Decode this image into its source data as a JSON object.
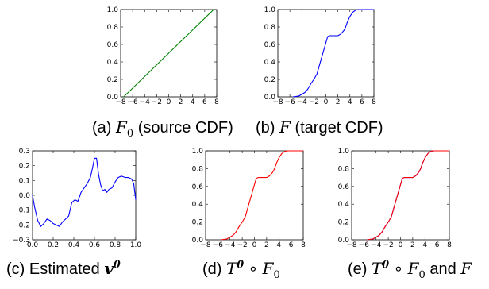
{
  "figure": {
    "captions": {
      "a": {
        "label": "(a) ",
        "sym": "F",
        "sub": "0",
        "text": " (source CDF)"
      },
      "b": {
        "label": "(b) ",
        "sym": "F",
        "text": " (target CDF)"
      },
      "c": {
        "label": "(c) Estimated ",
        "sym": "v",
        "sup": "θ"
      },
      "d": {
        "label": "(d) ",
        "sym": "T",
        "sup": "θ",
        "op": " ∘ ",
        "sym2": "F",
        "sub": "0"
      },
      "e": {
        "label": "(e) ",
        "sym": "T",
        "sup": "θ",
        "op": " ∘ ",
        "sym2": "F",
        "sub": "0",
        "tail": " and ",
        "sym3": "F"
      }
    }
  },
  "chart_data": [
    {
      "id": "a",
      "type": "line",
      "xlim": [
        -8,
        8
      ],
      "ylim": [
        0.0,
        1.0
      ],
      "xticks": [
        -8,
        -6,
        -4,
        -2,
        0,
        2,
        4,
        6,
        8
      ],
      "yticks": [
        "0.0",
        "0.2",
        "0.4",
        "0.6",
        "0.8",
        "1.0"
      ],
      "series": [
        {
          "color": "#008000",
          "x": [
            -7.5,
            7.5
          ],
          "y": [
            0.0,
            1.0
          ]
        }
      ]
    },
    {
      "id": "b",
      "type": "line",
      "xlim": [
        -8,
        8
      ],
      "ylim": [
        0.0,
        1.0
      ],
      "xticks": [
        -8,
        -6,
        -4,
        -2,
        0,
        2,
        4,
        6,
        8
      ],
      "yticks": [
        "0.0",
        "0.2",
        "0.4",
        "0.6",
        "0.8",
        "1.0"
      ],
      "series": [
        {
          "color": "#0000ff",
          "x": [
            -5.5,
            -4.5,
            -3.5,
            -3.0,
            -2.5,
            -2.0,
            -1.5,
            -1.0,
            -0.5,
            0.0,
            0.3,
            0.6,
            1.0,
            1.5,
            2.0,
            2.5,
            3.0,
            3.3,
            3.6,
            4.0,
            4.5,
            5.0,
            5.5,
            6.0,
            7.0,
            8.0
          ],
          "y": [
            0.0,
            0.01,
            0.05,
            0.09,
            0.15,
            0.2,
            0.26,
            0.38,
            0.5,
            0.62,
            0.69,
            0.7,
            0.7,
            0.7,
            0.7,
            0.72,
            0.76,
            0.8,
            0.86,
            0.92,
            0.97,
            0.995,
            1.0,
            1.0,
            1.0,
            1.0
          ]
        }
      ]
    },
    {
      "id": "c",
      "type": "line",
      "xlim": [
        0.0,
        1.0
      ],
      "ylim": [
        -0.3,
        0.3
      ],
      "xticks": [
        "0.0",
        "0.2",
        "0.4",
        "0.6",
        "0.8",
        "1.0"
      ],
      "xtickvals": [
        0.0,
        0.2,
        0.4,
        0.6,
        0.8,
        1.0
      ],
      "yticks": [
        "-0.3",
        "-0.2",
        "-0.1",
        "0.0",
        "0.1",
        "0.2",
        "0.3"
      ],
      "ytickvals": [
        -0.3,
        -0.2,
        -0.1,
        0.0,
        0.1,
        0.2,
        0.3
      ],
      "series": [
        {
          "color": "#0000ff",
          "x": [
            0.0,
            0.02,
            0.05,
            0.08,
            0.11,
            0.14,
            0.17,
            0.2,
            0.23,
            0.26,
            0.29,
            0.32,
            0.35,
            0.38,
            0.41,
            0.44,
            0.47,
            0.5,
            0.53,
            0.56,
            0.58,
            0.6,
            0.62,
            0.64,
            0.66,
            0.68,
            0.7,
            0.72,
            0.74,
            0.77,
            0.8,
            0.83,
            0.86,
            0.9,
            0.93,
            0.96,
            0.98,
            1.0
          ],
          "y": [
            0.0,
            -0.08,
            -0.17,
            -0.21,
            -0.19,
            -0.16,
            -0.17,
            -0.19,
            -0.2,
            -0.21,
            -0.18,
            -0.16,
            -0.14,
            -0.05,
            -0.03,
            -0.04,
            0.02,
            0.05,
            0.08,
            0.12,
            0.18,
            0.25,
            0.25,
            0.14,
            0.07,
            0.03,
            0.04,
            0.02,
            0.04,
            0.05,
            0.09,
            0.12,
            0.13,
            0.12,
            0.12,
            0.11,
            0.08,
            -0.03
          ]
        }
      ]
    },
    {
      "id": "d",
      "type": "line",
      "xlim": [
        -8,
        8
      ],
      "ylim": [
        0.0,
        1.0
      ],
      "xticks": [
        -8,
        -6,
        -4,
        -2,
        0,
        2,
        4,
        6,
        8
      ],
      "yticks": [
        "0.0",
        "0.2",
        "0.4",
        "0.6",
        "0.8",
        "1.0"
      ],
      "series": [
        {
          "color": "#ff0000",
          "x": [
            -5.5,
            -4.5,
            -3.5,
            -3.0,
            -2.5,
            -2.0,
            -1.5,
            -1.0,
            -0.5,
            0.0,
            0.3,
            0.6,
            1.0,
            1.5,
            2.0,
            2.5,
            3.0,
            3.3,
            3.6,
            4.0,
            4.5,
            5.0,
            5.5,
            6.0,
            7.0,
            8.0
          ],
          "y": [
            0.0,
            0.01,
            0.05,
            0.09,
            0.15,
            0.2,
            0.26,
            0.38,
            0.5,
            0.62,
            0.69,
            0.7,
            0.7,
            0.7,
            0.7,
            0.72,
            0.76,
            0.8,
            0.86,
            0.92,
            0.97,
            0.995,
            1.0,
            1.0,
            1.0,
            1.0
          ]
        }
      ]
    },
    {
      "id": "e",
      "type": "line",
      "xlim": [
        -8,
        8
      ],
      "ylim": [
        0.0,
        1.0
      ],
      "xticks": [
        -8,
        -6,
        -4,
        -2,
        0,
        2,
        4,
        6,
        8
      ],
      "yticks": [
        "0.0",
        "0.2",
        "0.4",
        "0.6",
        "0.8",
        "1.0"
      ],
      "series": [
        {
          "color": "#0000ff",
          "x": [
            -5.5,
            -4.5,
            -3.5,
            -3.0,
            -2.5,
            -2.0,
            -1.5,
            -1.0,
            -0.5,
            0.0,
            0.3,
            0.6,
            1.0,
            1.5,
            2.0,
            2.5,
            3.0,
            3.3,
            3.6,
            4.0,
            4.5,
            5.0,
            5.5,
            6.0,
            7.0,
            8.0
          ],
          "y": [
            0.0,
            0.01,
            0.05,
            0.09,
            0.15,
            0.2,
            0.26,
            0.38,
            0.5,
            0.62,
            0.69,
            0.7,
            0.7,
            0.7,
            0.7,
            0.72,
            0.76,
            0.8,
            0.86,
            0.92,
            0.97,
            0.995,
            1.0,
            1.0,
            1.0,
            1.0
          ]
        },
        {
          "color": "#ff0000",
          "x": [
            -5.5,
            -4.5,
            -3.5,
            -3.0,
            -2.5,
            -2.0,
            -1.5,
            -1.0,
            -0.5,
            0.0,
            0.3,
            0.6,
            1.0,
            1.5,
            2.0,
            2.5,
            3.0,
            3.3,
            3.6,
            4.0,
            4.5,
            5.0,
            5.5,
            6.0,
            7.0,
            8.0
          ],
          "y": [
            0.0,
            0.01,
            0.05,
            0.09,
            0.15,
            0.2,
            0.26,
            0.38,
            0.5,
            0.62,
            0.69,
            0.7,
            0.7,
            0.7,
            0.7,
            0.72,
            0.76,
            0.8,
            0.86,
            0.92,
            0.97,
            0.995,
            1.0,
            1.0,
            1.0,
            1.0
          ]
        }
      ]
    }
  ]
}
